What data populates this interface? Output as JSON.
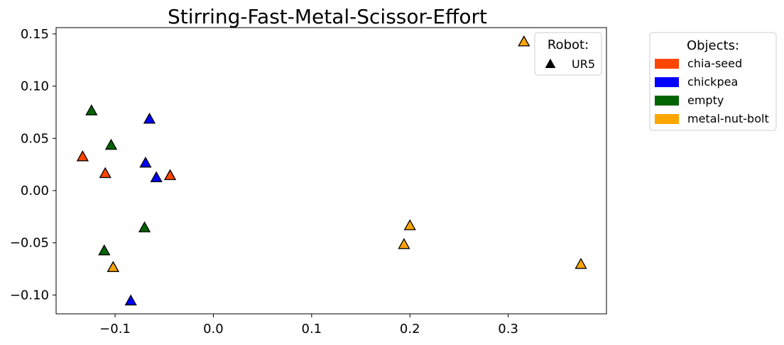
{
  "chart_data": {
    "type": "scatter",
    "title": "Stirring-Fast-Metal-Scissor-Effort",
    "xlabel": "",
    "ylabel": "",
    "xlim": [
      -0.16,
      0.4
    ],
    "ylim": [
      -0.118,
      0.156
    ],
    "grid": false,
    "x_ticks": [
      -0.1,
      0.0,
      0.1,
      0.2,
      0.3
    ],
    "x_tick_labels": [
      "−0.1",
      "0.0",
      "0.1",
      "0.2",
      "0.3"
    ],
    "y_ticks": [
      -0.1,
      -0.05,
      0.0,
      0.05,
      0.1,
      0.15
    ],
    "y_tick_labels": [
      "−0.10",
      "−0.05",
      "0.00",
      "0.05",
      "0.10",
      "0.15"
    ],
    "marker": "triangle",
    "robot_legend": {
      "title": "Robot:",
      "placement": "top-right inside axes",
      "entries": [
        {
          "label": "UR5",
          "marker": "triangle",
          "color": "#000000"
        }
      ]
    },
    "objects_legend": {
      "title": "Objects:",
      "placement": "outside right",
      "entries": [
        {
          "label": "chia-seed",
          "color": "#FF4500"
        },
        {
          "label": "chickpea",
          "color": "#0000FF"
        },
        {
          "label": "empty",
          "color": "#006400"
        },
        {
          "label": "metal-nut-bolt",
          "color": "#FFA500"
        }
      ]
    },
    "series": [
      {
        "name": "chia-seed",
        "robot": "UR5",
        "color": "#FF4500",
        "points": [
          [
            -0.133,
            0.032
          ],
          [
            -0.11,
            0.016
          ],
          [
            -0.044,
            0.014
          ]
        ]
      },
      {
        "name": "chickpea",
        "robot": "UR5",
        "color": "#0000FF",
        "points": [
          [
            -0.065,
            0.068
          ],
          [
            -0.069,
            0.026
          ],
          [
            -0.058,
            0.012
          ],
          [
            -0.084,
            -0.106
          ]
        ]
      },
      {
        "name": "empty",
        "robot": "UR5",
        "color": "#006400",
        "points": [
          [
            -0.124,
            0.076
          ],
          [
            -0.104,
            0.043
          ],
          [
            -0.07,
            -0.036
          ],
          [
            -0.111,
            -0.058
          ]
        ]
      },
      {
        "name": "metal-nut-bolt",
        "robot": "UR5",
        "color": "#FFA500",
        "points": [
          [
            0.316,
            0.142
          ],
          [
            0.2,
            -0.034
          ],
          [
            0.194,
            -0.052
          ],
          [
            0.374,
            -0.071
          ],
          [
            -0.102,
            -0.074
          ],
          [
            -0.102,
            -0.074
          ]
        ]
      }
    ]
  }
}
